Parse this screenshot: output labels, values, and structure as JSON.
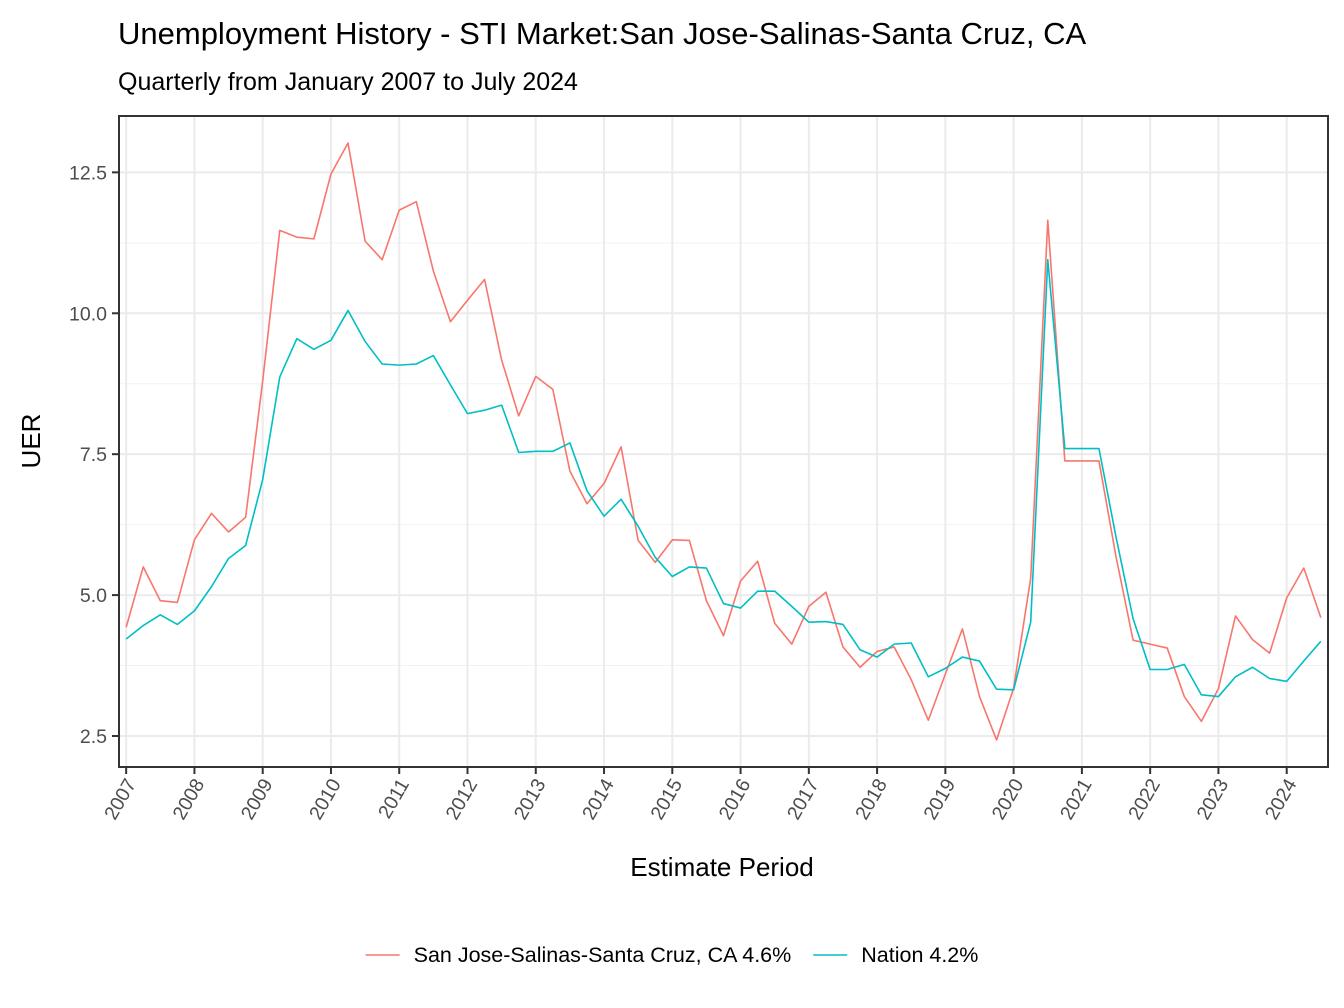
{
  "chart_data": {
    "type": "line",
    "title": "Unemployment History - STI Market:San Jose-Salinas-Santa Cruz, CA",
    "subtitle": "Quarterly from January 2007 to July 2024",
    "xlabel": "Estimate Period",
    "ylabel": "UER",
    "x_start": "2007-01",
    "x_step_months": 3,
    "xlim": [
      "2007-01",
      "2024-07"
    ],
    "ylim": [
      1.95,
      13.5
    ],
    "xticks": [
      "2007",
      "2008",
      "2009",
      "2010",
      "2011",
      "2012",
      "2013",
      "2014",
      "2015",
      "2016",
      "2017",
      "2018",
      "2019",
      "2020",
      "2021",
      "2022",
      "2023",
      "2024"
    ],
    "yticks": [
      2.5,
      5.0,
      7.5,
      10.0,
      12.5
    ],
    "ytick_labels": [
      "2.5",
      "5.0",
      "7.5",
      "10.0",
      "12.5"
    ],
    "grid": true,
    "legend_position": "bottom",
    "series": [
      {
        "name": "San Jose-Salinas-Santa Cruz, CA 4.6%",
        "color": "#F8766D",
        "values": [
          4.43,
          5.5,
          4.9,
          4.87,
          5.98,
          6.45,
          6.12,
          6.38,
          8.8,
          11.47,
          11.35,
          11.32,
          12.47,
          13.02,
          11.28,
          10.95,
          11.83,
          11.98,
          10.75,
          9.85,
          10.23,
          10.6,
          9.17,
          8.18,
          8.88,
          8.65,
          7.2,
          6.62,
          6.98,
          7.63,
          5.97,
          5.58,
          5.98,
          5.97,
          4.9,
          4.28,
          5.25,
          5.6,
          4.5,
          4.13,
          4.8,
          5.05,
          4.08,
          3.72,
          4.0,
          4.08,
          3.5,
          2.78,
          3.6,
          4.4,
          3.2,
          2.43,
          3.35,
          5.3,
          11.65,
          7.38,
          7.38,
          7.38,
          5.68,
          4.2,
          4.13,
          4.06,
          3.2,
          2.76,
          3.34,
          4.63,
          4.21,
          3.97,
          4.95,
          5.48,
          4.6
        ]
      },
      {
        "name": "Nation 4.2%",
        "color": "#00BFC4",
        "values": [
          4.22,
          4.46,
          4.65,
          4.48,
          4.72,
          5.15,
          5.65,
          5.88,
          7.05,
          8.87,
          9.55,
          9.36,
          9.52,
          10.05,
          9.5,
          9.1,
          9.08,
          9.1,
          9.25,
          8.73,
          8.22,
          8.28,
          8.37,
          7.53,
          7.55,
          7.55,
          7.7,
          6.85,
          6.4,
          6.7,
          6.22,
          5.67,
          5.33,
          5.5,
          5.48,
          4.85,
          4.77,
          5.07,
          5.07,
          4.8,
          4.52,
          4.53,
          4.48,
          4.03,
          3.9,
          4.13,
          4.15,
          3.55,
          3.7,
          3.9,
          3.83,
          3.33,
          3.32,
          4.52,
          10.95,
          7.6,
          7.6,
          7.6,
          6.03,
          4.58,
          3.68,
          3.68,
          3.77,
          3.23,
          3.2,
          3.55,
          3.72,
          3.52,
          3.47,
          3.83,
          4.18
        ]
      }
    ]
  }
}
